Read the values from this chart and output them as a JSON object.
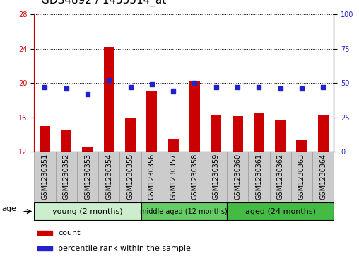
{
  "title": "GDS4892 / 1455514_at",
  "samples": [
    "GSM1230351",
    "GSM1230352",
    "GSM1230353",
    "GSM1230354",
    "GSM1230355",
    "GSM1230356",
    "GSM1230357",
    "GSM1230358",
    "GSM1230359",
    "GSM1230360",
    "GSM1230361",
    "GSM1230362",
    "GSM1230363",
    "GSM1230364"
  ],
  "bar_values": [
    15.0,
    14.5,
    12.5,
    24.1,
    16.0,
    19.0,
    13.5,
    20.2,
    16.2,
    16.1,
    16.5,
    15.7,
    13.3,
    16.2
  ],
  "percentile_values": [
    47,
    46,
    42,
    52,
    47,
    49,
    44,
    50,
    47,
    47,
    47,
    46,
    46,
    47
  ],
  "bar_color": "#cc0000",
  "dot_color": "#2222cc",
  "ylim_left": [
    12,
    28
  ],
  "ylim_right": [
    0,
    100
  ],
  "yticks_left": [
    12,
    16,
    20,
    24,
    28
  ],
  "yticks_right": [
    0,
    25,
    50,
    75,
    100
  ],
  "group_data": [
    {
      "label": "young (2 months)",
      "start": 0,
      "end": 4,
      "color": "#cceecc"
    },
    {
      "label": "middle aged (12 months)",
      "start": 5,
      "end": 8,
      "color": "#66cc66"
    },
    {
      "label": "aged (24 months)",
      "start": 9,
      "end": 13,
      "color": "#44bb44"
    }
  ],
  "age_label": "age",
  "legend_bar_label": "count",
  "legend_dot_label": "percentile rank within the sample",
  "tick_cell_color": "#cccccc",
  "title_fontsize": 11,
  "tick_fontsize": 7,
  "label_fontsize": 8,
  "group_fontsize": 8
}
